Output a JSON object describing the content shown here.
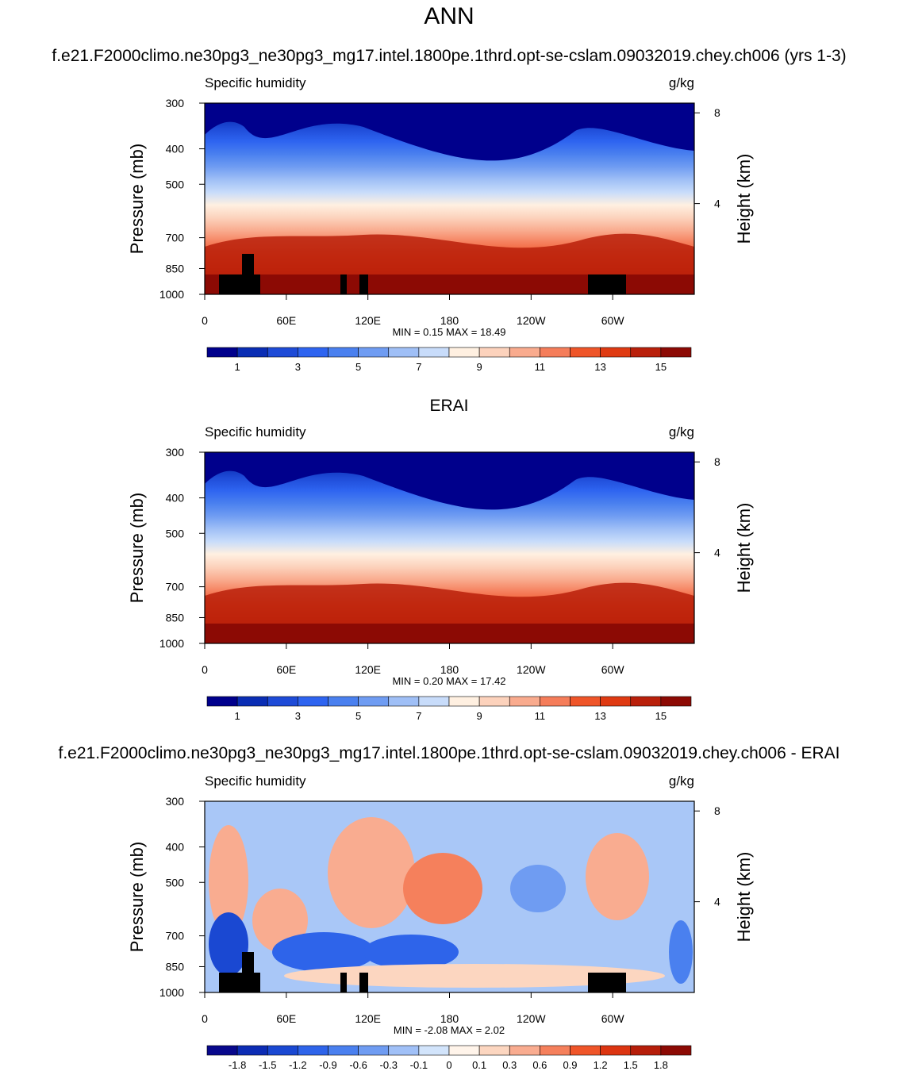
{
  "page": {
    "main_title": "ANN",
    "case_title": "f.e21.F2000climo.ne30pg3_ne30pg3_mg17.intel.1800pe.1thrd.opt-se-cslam.09032019.chey.ch006 (yrs 1-3)",
    "erai_title": "ERAI",
    "diff_title": "f.e21.F2000climo.ne30pg3_ne30pg3_mg17.intel.1800pe.1thrd.opt-se-cslam.09032019.chey.ch006 - ERAI"
  },
  "chart_data": [
    {
      "type": "heatmap",
      "variable": "Specific humidity",
      "units": "g/kg",
      "ylabel": "Pressure (mb)",
      "y2label": "Height (km)",
      "x_ticks": [
        "0",
        "60E",
        "120E",
        "180",
        "120W",
        "60W"
      ],
      "x_tick_values": [
        0,
        60,
        120,
        180,
        240,
        300
      ],
      "xlim": [
        0,
        360
      ],
      "y_ticks": [
        "300",
        "400",
        "500",
        "700",
        "850",
        "1000"
      ],
      "y_tick_values": [
        300,
        400,
        500,
        700,
        850,
        1000
      ],
      "ylim": [
        1000,
        300
      ],
      "height_ticks": [
        "8",
        "4"
      ],
      "height_tick_values": [
        8,
        4
      ],
      "stats": "MIN =   0.15  MAX =  18.49",
      "colorbar_labels": [
        "1",
        "3",
        "5",
        "7",
        "9",
        "11",
        "13",
        "15"
      ],
      "colorbar_colors": [
        "#00008c",
        "#0a2db4",
        "#1e4bd7",
        "#2e64f0",
        "#4a80ef",
        "#6f9cf2",
        "#9fbff6",
        "#c8dcfa",
        "#fff0e1",
        "#fcd2bc",
        "#f9ab8e",
        "#f57d5a",
        "#ef5529",
        "#df3a12",
        "#b9200b",
        "#8c0a04"
      ]
    },
    {
      "type": "heatmap",
      "variable": "Specific humidity",
      "units": "g/kg",
      "ylabel": "Pressure (mb)",
      "y2label": "Height (km)",
      "x_ticks": [
        "0",
        "60E",
        "120E",
        "180",
        "120W",
        "60W"
      ],
      "x_tick_values": [
        0,
        60,
        120,
        180,
        240,
        300
      ],
      "xlim": [
        0,
        360
      ],
      "y_ticks": [
        "300",
        "400",
        "500",
        "700",
        "850",
        "1000"
      ],
      "y_tick_values": [
        300,
        400,
        500,
        700,
        850,
        1000
      ],
      "ylim": [
        1000,
        300
      ],
      "height_ticks": [
        "8",
        "4"
      ],
      "height_tick_values": [
        8,
        4
      ],
      "stats": "MIN =   0.20  MAX =  17.42",
      "colorbar_labels": [
        "1",
        "3",
        "5",
        "7",
        "9",
        "11",
        "13",
        "15"
      ],
      "colorbar_colors": [
        "#00008c",
        "#0a2db4",
        "#1e4bd7",
        "#2e64f0",
        "#4a80ef",
        "#6f9cf2",
        "#9fbff6",
        "#c8dcfa",
        "#fff0e1",
        "#fcd2bc",
        "#f9ab8e",
        "#f57d5a",
        "#ef5529",
        "#df3a12",
        "#b9200b",
        "#8c0a04"
      ]
    },
    {
      "type": "heatmap",
      "variable": "Specific humidity",
      "units": "g/kg",
      "ylabel": "Pressure (mb)",
      "y2label": "Height (km)",
      "x_ticks": [
        "0",
        "60E",
        "120E",
        "180",
        "120W",
        "60W"
      ],
      "x_tick_values": [
        0,
        60,
        120,
        180,
        240,
        300
      ],
      "xlim": [
        0,
        360
      ],
      "y_ticks": [
        "300",
        "400",
        "500",
        "700",
        "850",
        "1000"
      ],
      "y_tick_values": [
        300,
        400,
        500,
        700,
        850,
        1000
      ],
      "ylim": [
        1000,
        300
      ],
      "height_ticks": [
        "8",
        "4"
      ],
      "height_tick_values": [
        8,
        4
      ],
      "stats": "MIN =  -2.08  MAX =   2.02",
      "colorbar_labels": [
        "-1.8",
        "-1.5",
        "-1.2",
        "-0.9",
        "-0.6",
        "-0.3",
        "-0.1",
        "0",
        "0.1",
        "0.3",
        "0.6",
        "0.9",
        "1.2",
        "1.5",
        "1.8"
      ],
      "colorbar_colors": [
        "#08088c",
        "#0c2cb4",
        "#1a48d2",
        "#2e64ea",
        "#4a80ef",
        "#6f9cf2",
        "#a0c0f7",
        "#d2e4fb",
        "#fff4ea",
        "#fcd6c0",
        "#f9ac90",
        "#f5805c",
        "#ef5529",
        "#dc3511",
        "#b61e0a",
        "#8c0a04"
      ]
    }
  ]
}
